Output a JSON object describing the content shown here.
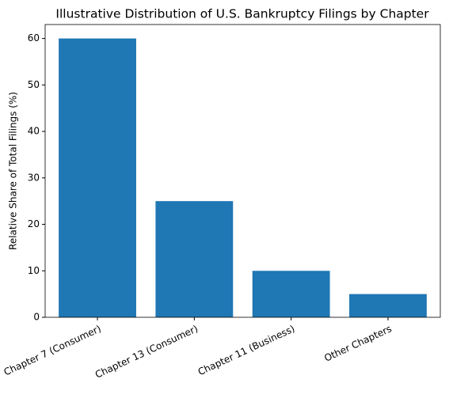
{
  "chart_data": {
    "type": "bar",
    "title": "Illustrative Distribution of U.S. Bankruptcy Filings by Chapter",
    "y_label": "Relative Share of Total Filings (%)",
    "categories": [
      "Chapter 7 (Consumer)",
      "Chapter 13 (Consumer)",
      "Chapter 11 (Business)",
      "Other Chapters"
    ],
    "values": [
      60,
      25,
      10,
      5
    ],
    "color": "#1f77b4",
    "ylim": [
      0,
      63
    ],
    "yticks": [
      0,
      10,
      20,
      30,
      40,
      50,
      60
    ],
    "grid": false
  }
}
